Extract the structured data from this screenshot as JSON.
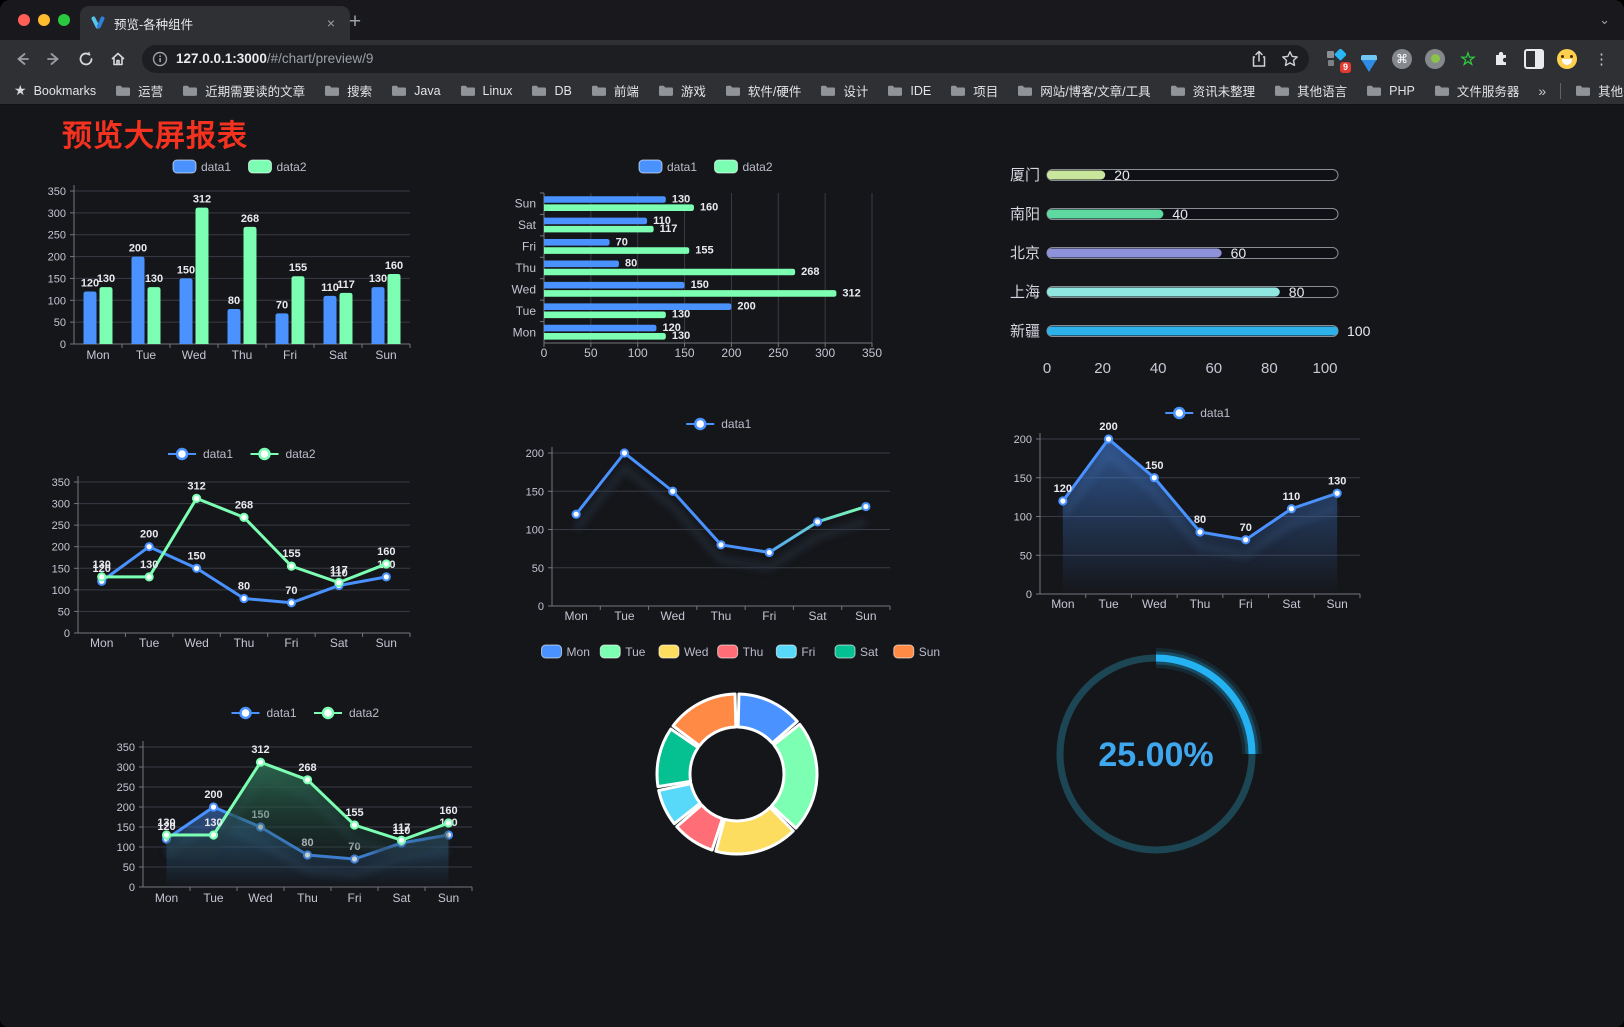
{
  "browser": {
    "tab_title": "预览-各种组件",
    "new_tab_label": "+",
    "close_tab_label": "×",
    "url_host": "127.0.0.1:3000",
    "url_path": "/#/chart/preview/9",
    "extension_badge": "9",
    "menu_dots": "⋮",
    "strip_chevron": "⌄",
    "bookmarks_label": "Bookmarks",
    "bookmarks": [
      "运营",
      "近期需要读的文章",
      "搜索",
      "Java",
      "Linux",
      "DB",
      "前端",
      "游戏",
      "软件/硬件",
      "设计",
      "IDE",
      "项目",
      "网站/博客/文章/工具",
      "资讯未整理",
      "其他语言",
      "PHP",
      "文件服务器"
    ],
    "bookmarks_overflow": "»",
    "other_bookmarks": "其他书签"
  },
  "page": {
    "title": "预览大屏报表",
    "title_color": "#f5321f",
    "background": "#15161a"
  },
  "palette": {
    "blue": "#4992ff",
    "green": "#7cffb2",
    "yellow": "#fddd60",
    "red": "#ff6e76",
    "lightblue": "#58d9f9",
    "teal": "#05c091",
    "orange": "#ff8a45"
  },
  "chart_data": [
    {
      "id": "grouped-bar",
      "type": "bar",
      "categories": [
        "Mon",
        "Tue",
        "Wed",
        "Thu",
        "Fri",
        "Sat",
        "Sun"
      ],
      "series": [
        {
          "name": "data1",
          "color": "#4992ff",
          "values": [
            120,
            200,
            150,
            80,
            70,
            110,
            130
          ]
        },
        {
          "name": "data2",
          "color": "#7cffb2",
          "values": [
            130,
            130,
            312,
            268,
            155,
            117,
            160
          ]
        }
      ],
      "ylim": [
        0,
        350
      ],
      "ytick": 50,
      "labels": true,
      "legend": "rect"
    },
    {
      "id": "horizontal-bar",
      "type": "barh",
      "categories": [
        "Mon",
        "Tue",
        "Wed",
        "Thu",
        "Fri",
        "Sat",
        "Sun"
      ],
      "category_display": "Sun-at-top",
      "series": [
        {
          "name": "data1",
          "color": "#4992ff",
          "values": [
            120,
            200,
            150,
            80,
            70,
            110,
            130
          ]
        },
        {
          "name": "data2",
          "color": "#7cffb2",
          "values": [
            130,
            130,
            312,
            268,
            155,
            117,
            160
          ]
        }
      ],
      "xlim": [
        0,
        350
      ],
      "xtick": 50,
      "labels": true,
      "legend": "rect"
    },
    {
      "id": "city-progress",
      "type": "progress",
      "items": [
        {
          "label": "厦门",
          "value": 20,
          "color": "#c9e79c"
        },
        {
          "label": "南阳",
          "value": 40,
          "color": "#5ed9a2"
        },
        {
          "label": "北京",
          "value": 60,
          "color": "#8d92db"
        },
        {
          "label": "上海",
          "value": 80,
          "color": "#90e7e1"
        },
        {
          "label": "新疆",
          "value": 100,
          "color": "#2cb1e8"
        }
      ],
      "max": 100,
      "xticks": [
        0,
        20,
        40,
        60,
        80,
        100
      ]
    },
    {
      "id": "two-line",
      "type": "line",
      "categories": [
        "Mon",
        "Tue",
        "Wed",
        "Thu",
        "Fri",
        "Sat",
        "Sun"
      ],
      "series": [
        {
          "name": "data1",
          "color": "#4992ff",
          "values": [
            120,
            200,
            150,
            80,
            70,
            110,
            130
          ],
          "labels": true
        },
        {
          "name": "data2",
          "color": "#7cffb2",
          "values": [
            130,
            130,
            312,
            268,
            155,
            117,
            160
          ],
          "labels": true
        }
      ],
      "ylim": [
        0,
        350
      ],
      "ytick": 50,
      "legend": "line"
    },
    {
      "id": "gradient-line",
      "type": "line",
      "categories": [
        "Mon",
        "Tue",
        "Wed",
        "Thu",
        "Fri",
        "Sat",
        "Sun"
      ],
      "series": [
        {
          "name": "data1",
          "color": "#4992ff",
          "gradient": [
            "#4992ff",
            "#7cffb2"
          ],
          "values": [
            120,
            200,
            150,
            80,
            70,
            110,
            130
          ],
          "labels": false,
          "shadow": true
        }
      ],
      "ylim": [
        0,
        200
      ],
      "ytick": 50,
      "legend": "line"
    },
    {
      "id": "area-line",
      "type": "line",
      "categories": [
        "Mon",
        "Tue",
        "Wed",
        "Thu",
        "Fri",
        "Sat",
        "Sun"
      ],
      "series": [
        {
          "name": "data1",
          "color": "#4992ff",
          "area": [
            "rgba(73,146,255,0.50)",
            "rgba(73,146,255,0)"
          ],
          "values": [
            120,
            200,
            150,
            80,
            70,
            110,
            130
          ],
          "labels": true,
          "shadow": true
        }
      ],
      "ylim": [
        0,
        200
      ],
      "ytick": 50,
      "legend": "line"
    },
    {
      "id": "two-area-line",
      "type": "line",
      "categories": [
        "Mon",
        "Tue",
        "Wed",
        "Thu",
        "Fri",
        "Sat",
        "Sun"
      ],
      "series": [
        {
          "name": "data1",
          "color": "#4992ff",
          "area": [
            "rgba(73,146,255,0.45)",
            "rgba(73,146,255,0)"
          ],
          "values": [
            120,
            200,
            150,
            80,
            70,
            110,
            130
          ],
          "labels": true,
          "shadow": true
        },
        {
          "name": "data2",
          "color": "#7cffb2",
          "area": [
            "rgba(46,116,86,0.85)",
            "rgba(20,40,40,0.05)"
          ],
          "values": [
            130,
            130,
            312,
            268,
            155,
            117,
            160
          ],
          "labels": true,
          "shadow": true
        }
      ],
      "ylim": [
        0,
        350
      ],
      "ytick": 50,
      "legend": "line"
    },
    {
      "id": "week-donut",
      "type": "donut",
      "items": [
        {
          "label": "Mon",
          "value": 120,
          "color": "#4992ff"
        },
        {
          "label": "Tue",
          "value": 200,
          "color": "#7cffb2"
        },
        {
          "label": "Wed",
          "value": 150,
          "color": "#fddd60"
        },
        {
          "label": "Thu",
          "value": 80,
          "color": "#ff6e76"
        },
        {
          "label": "Fri",
          "value": 70,
          "color": "#58d9f9"
        },
        {
          "label": "Sat",
          "value": 110,
          "color": "#05c091"
        },
        {
          "label": "Sun",
          "value": 130,
          "color": "#ff8a45"
        }
      ]
    },
    {
      "id": "percent-gauge",
      "type": "gauge",
      "value": 25,
      "label": "25.00%",
      "color": "#25b2f2",
      "track_color": "#1d4654",
      "text_color": "#3fa7ee"
    }
  ]
}
